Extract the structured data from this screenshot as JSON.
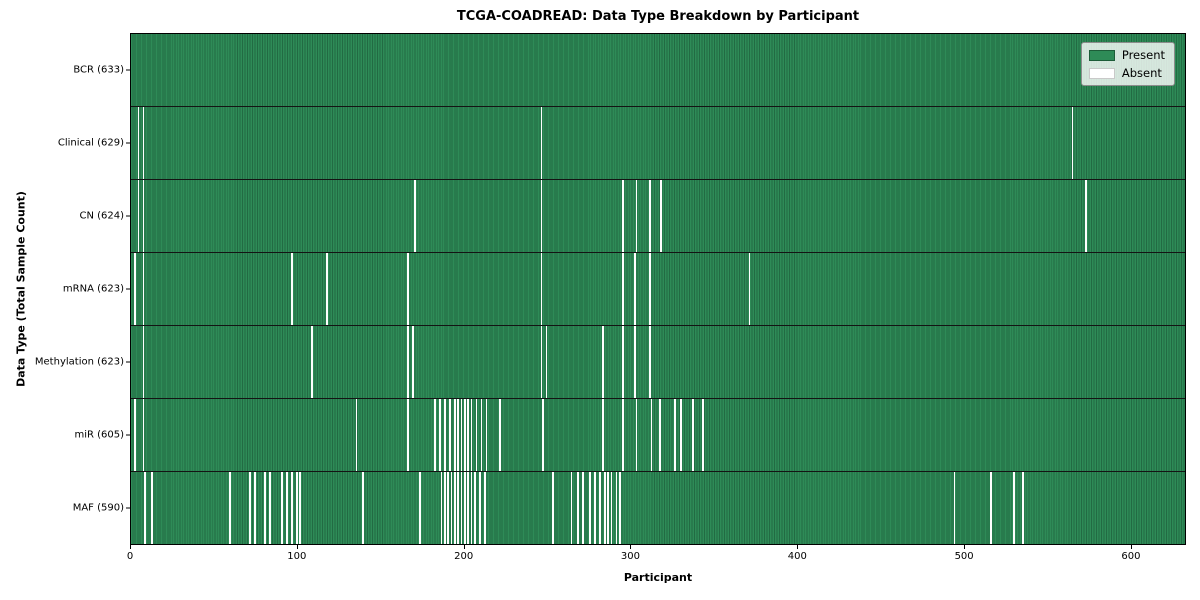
{
  "figure": {
    "title": "TCGA-COADREAD: Data Type Breakdown by Participant",
    "xlabel": "Participant",
    "ylabel": "Data Type (Total Sample Count)"
  },
  "legend": {
    "present_label": "Present",
    "absent_label": "Absent"
  },
  "colors": {
    "present": "#2e8b57",
    "present_dark": "#226b43",
    "absent": "#ffffff",
    "row_divider": "#141414"
  },
  "chart_data": {
    "type": "heatmap",
    "title": "TCGA-COADREAD: Data Type Breakdown by Participant",
    "xlabel": "Participant",
    "ylabel": "Data Type (Total Sample Count)",
    "xlim": [
      0,
      633
    ],
    "x_ticks": [
      0,
      100,
      200,
      300,
      400,
      500,
      600
    ],
    "grid": false,
    "legend_entries": [
      "Present",
      "Absent"
    ],
    "legend_position": "upper right",
    "n_participants": 633,
    "rows": [
      {
        "name": "BCR",
        "total": 633,
        "label": "BCR (633)",
        "absent_participants": []
      },
      {
        "name": "Clinical",
        "total": 629,
        "label": "Clinical (629)",
        "absent_participants": [
          4,
          7,
          246,
          565
        ]
      },
      {
        "name": "CN",
        "total": 624,
        "label": "CN (624)",
        "absent_participants": [
          4,
          7,
          170,
          246,
          295,
          303,
          311,
          318,
          573
        ]
      },
      {
        "name": "mRNA",
        "total": 623,
        "label": "mRNA (623)",
        "absent_participants": [
          2,
          7,
          96,
          117,
          166,
          246,
          295,
          302,
          311,
          371
        ]
      },
      {
        "name": "Methylation",
        "total": 623,
        "label": "Methylation (623)",
        "absent_participants": [
          7,
          108,
          166,
          169,
          246,
          249,
          283,
          295,
          302,
          311
        ]
      },
      {
        "name": "miR",
        "total": 605,
        "label": "miR (605)",
        "absent_participants": [
          2,
          7,
          135,
          166,
          182,
          185,
          188,
          191,
          194,
          196,
          198,
          200,
          202,
          204,
          207,
          210,
          213,
          221,
          247,
          283,
          295,
          303,
          312,
          317,
          326,
          330,
          337,
          343
        ]
      },
      {
        "name": "MAF",
        "total": 590,
        "label": "MAF (590)",
        "absent_participants": [
          8,
          12,
          59,
          71,
          74,
          80,
          83,
          90,
          93,
          96,
          99,
          101,
          139,
          173,
          186,
          188,
          190,
          192,
          194,
          196,
          198,
          200,
          202,
          204,
          206,
          209,
          212,
          253,
          264,
          268,
          271,
          275,
          278,
          281,
          284,
          286,
          288,
          291,
          293,
          494,
          516,
          530,
          535
        ]
      }
    ]
  }
}
